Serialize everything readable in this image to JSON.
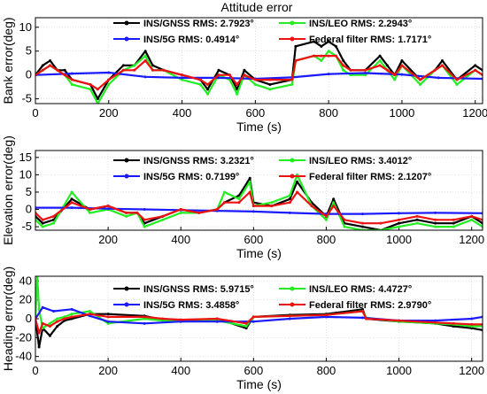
{
  "figure": {
    "title": "Attitude error"
  },
  "colors": {
    "gnss": "#000000",
    "leo": "#22ee22",
    "fiveg": "#1a1aff",
    "federal": "#ee1111"
  },
  "chart_data": [
    {
      "type": "line",
      "ylabel": "Bank error(deg)",
      "xlabel": "Time (s)",
      "xlim": [
        0,
        1220
      ],
      "ylim": [
        -6,
        12
      ],
      "xticks": [
        0,
        200,
        400,
        600,
        800,
        1000,
        1200
      ],
      "yticks": [
        -5,
        0,
        5,
        10
      ],
      "grid": true,
      "legend_location": "top",
      "series": [
        {
          "name": "INS/GNSS RMS: 2.7923°",
          "color_key": "gnss",
          "x": [
            0,
            20,
            40,
            60,
            80,
            100,
            150,
            170,
            200,
            240,
            270,
            300,
            320,
            350,
            400,
            450,
            470,
            500,
            530,
            550,
            570,
            600,
            640,
            700,
            710,
            760,
            780,
            800,
            820,
            840,
            860,
            900,
            940,
            960,
            980,
            1000,
            1050,
            1090,
            1110,
            1150,
            1200,
            1220
          ],
          "y": [
            0,
            2,
            3,
            1,
            1,
            -1,
            -2,
            -5,
            -1,
            2,
            2,
            5,
            2,
            1,
            0,
            -1,
            -3,
            1,
            0,
            -3,
            1,
            -1,
            -2,
            -1,
            6,
            7,
            6,
            7,
            6,
            3,
            1,
            1,
            4,
            2,
            0,
            3,
            -1,
            1,
            3,
            -1,
            2,
            1
          ]
        },
        {
          "name": "INS/LEO RMS: 2.2943°",
          "color_key": "leo",
          "x": [
            0,
            20,
            40,
            60,
            80,
            100,
            150,
            170,
            200,
            240,
            270,
            300,
            320,
            350,
            400,
            450,
            470,
            500,
            530,
            550,
            570,
            600,
            640,
            700,
            710,
            760,
            780,
            800,
            820,
            840,
            860,
            900,
            940,
            960,
            980,
            1000,
            1050,
            1090,
            1110,
            1150,
            1200,
            1220
          ],
          "y": [
            0,
            1,
            2,
            1,
            0,
            -2,
            -3,
            -6,
            -2,
            1,
            2,
            4,
            1,
            1,
            -1,
            -2,
            -4,
            0,
            -1,
            -4,
            0,
            -2,
            -3,
            -2,
            3,
            4,
            3,
            5,
            4,
            1,
            0,
            0,
            3,
            1,
            -1,
            2,
            -2,
            1,
            2,
            -2,
            1,
            0
          ]
        },
        {
          "name": "INS/5G RMS: 0.4914°",
          "color_key": "fiveg",
          "x": [
            0,
            100,
            200,
            300,
            400,
            500,
            600,
            700,
            800,
            900,
            1000,
            1100,
            1220
          ],
          "y": [
            0,
            0.3,
            0.5,
            -0.4,
            -0.6,
            -0.6,
            -0.8,
            -0.5,
            0.2,
            0.4,
            0.1,
            -0.6,
            -0.8
          ]
        },
        {
          "name": "Federal filter RMS: 1.7171°",
          "color_key": "federal",
          "x": [
            0,
            20,
            40,
            60,
            80,
            100,
            150,
            170,
            200,
            240,
            270,
            300,
            320,
            350,
            400,
            450,
            470,
            500,
            530,
            550,
            570,
            600,
            640,
            700,
            710,
            760,
            780,
            800,
            820,
            840,
            860,
            900,
            940,
            960,
            980,
            1000,
            1050,
            1090,
            1110,
            1150,
            1200,
            1220
          ],
          "y": [
            0,
            1,
            2,
            1,
            0,
            -1,
            -2,
            -3,
            -1,
            1,
            1,
            3,
            1,
            1,
            0,
            -1,
            -2,
            0,
            0,
            -2,
            0,
            -1,
            -1,
            -1,
            3,
            4,
            4,
            4,
            4,
            2,
            1,
            1,
            2,
            1,
            0,
            2,
            -1,
            1,
            2,
            -1,
            1,
            0
          ]
        }
      ]
    },
    {
      "type": "line",
      "ylabel": "Elevation error(deg)",
      "xlabel": "Time (s)",
      "xlim": [
        0,
        1230
      ],
      "ylim": [
        -6,
        17
      ],
      "xticks": [
        200,
        400,
        600,
        800,
        1000,
        1200
      ],
      "yticks": [
        -5,
        0,
        5,
        10,
        15
      ],
      "grid": true,
      "legend_location": "top",
      "series": [
        {
          "name": "INS/GNSS RMS: 3.2321°",
          "color_key": "gnss",
          "x": [
            0,
            20,
            50,
            100,
            150,
            200,
            250,
            280,
            300,
            350,
            400,
            450,
            500,
            520,
            560,
            590,
            600,
            650,
            700,
            720,
            760,
            800,
            820,
            850,
            900,
            950,
            1000,
            1050,
            1100,
            1150,
            1200,
            1230
          ],
          "y": [
            -2,
            -4,
            -3,
            3,
            0,
            1,
            -1,
            -1,
            -4,
            -2,
            0,
            -1,
            0,
            2,
            4,
            9,
            2,
            1,
            3,
            8,
            2,
            -2,
            3,
            -4,
            -5,
            -6,
            -4,
            -3,
            -4,
            -4,
            -2,
            -4
          ]
        },
        {
          "name": "INS/LEO RMS: 3.4012°",
          "color_key": "leo",
          "x": [
            0,
            20,
            50,
            100,
            150,
            200,
            250,
            280,
            300,
            350,
            400,
            450,
            500,
            520,
            560,
            590,
            600,
            650,
            700,
            720,
            760,
            800,
            820,
            850,
            900,
            950,
            1000,
            1050,
            1100,
            1150,
            1200,
            1230
          ],
          "y": [
            -3,
            -5,
            -4,
            5,
            -1,
            0,
            -2,
            -1,
            -5,
            -3,
            -1,
            -1,
            0,
            5,
            3,
            8,
            1,
            2,
            4,
            10,
            1,
            -3,
            2,
            -5,
            -6,
            -6,
            -5,
            -4,
            -5,
            -5,
            -3,
            -5
          ]
        },
        {
          "name": "INS/5G RMS: 0.7199°",
          "color_key": "fiveg",
          "x": [
            0,
            100,
            200,
            300,
            400,
            500,
            600,
            700,
            800,
            900,
            1000,
            1100,
            1230
          ],
          "y": [
            0.5,
            0.5,
            0.2,
            0,
            -0.2,
            -0.4,
            -0.6,
            -1,
            -1.3,
            -1.3,
            -1.1,
            -1,
            -1.1
          ]
        },
        {
          "name": "Federal filter RMS: 2.1207°",
          "color_key": "federal",
          "x": [
            0,
            20,
            50,
            100,
            150,
            200,
            250,
            280,
            300,
            350,
            400,
            450,
            500,
            520,
            560,
            590,
            600,
            650,
            700,
            720,
            760,
            800,
            820,
            850,
            900,
            950,
            1000,
            1050,
            1100,
            1150,
            1200,
            1230
          ],
          "y": [
            -1,
            -3,
            -2,
            2,
            0,
            1,
            -1,
            -1,
            -3,
            -2,
            0,
            -1,
            0,
            2,
            2,
            5,
            1,
            1,
            2,
            5,
            1,
            -2,
            1,
            -3,
            -4,
            -4,
            -3,
            -2,
            -3,
            -3,
            -2,
            -3
          ]
        }
      ]
    },
    {
      "type": "line",
      "ylabel": "Heading error(deg)",
      "xlabel": "Time (s)",
      "xlim": [
        0,
        1230
      ],
      "ylim": [
        -45,
        45
      ],
      "xticks": [
        0,
        200,
        400,
        600,
        800,
        1000,
        1200
      ],
      "yticks": [
        -40,
        -20,
        0,
        20,
        40
      ],
      "grid": true,
      "legend_location": "top",
      "series": [
        {
          "name": "INS/GNSS RMS: 5.9715°",
          "color_key": "gnss",
          "x": [
            0,
            10,
            20,
            40,
            60,
            80,
            100,
            150,
            200,
            300,
            350,
            400,
            500,
            580,
            600,
            700,
            800,
            900,
            910,
            1000,
            1100,
            1150,
            1200,
            1230
          ],
          "y": [
            0,
            -30,
            -10,
            -18,
            -8,
            -2,
            0,
            5,
            5,
            3,
            -1,
            -2,
            0,
            -10,
            2,
            4,
            5,
            10,
            0,
            -3,
            -5,
            -8,
            -10,
            -12
          ]
        },
        {
          "name": "INS/LEO RMS: 4.4727°",
          "color_key": "leo",
          "x": [
            0,
            5,
            10,
            20,
            40,
            60,
            80,
            100,
            150,
            200,
            300,
            350,
            400,
            500,
            580,
            600,
            700,
            800,
            900,
            910,
            1000,
            1100,
            1150,
            1200,
            1230
          ],
          "y": [
            0,
            45,
            10,
            -10,
            -5,
            0,
            2,
            5,
            8,
            -5,
            0,
            -2,
            -3,
            -2,
            -8,
            2,
            3,
            4,
            8,
            1,
            -3,
            -5,
            -6,
            -8,
            -8
          ]
        },
        {
          "name": "INS/5G RMS: 3.4858°",
          "color_key": "fiveg",
          "x": [
            0,
            20,
            50,
            100,
            150,
            200,
            300,
            400,
            500,
            600,
            700,
            800,
            900,
            1000,
            1100,
            1200,
            1230
          ],
          "y": [
            0,
            12,
            8,
            10,
            3,
            -3,
            -5,
            -3,
            -3,
            -3,
            0,
            2,
            1,
            -2,
            -2,
            0,
            2
          ]
        },
        {
          "name": "Federal filter RMS: 2.9790°",
          "color_key": "federal",
          "x": [
            0,
            10,
            20,
            40,
            60,
            80,
            100,
            150,
            200,
            300,
            350,
            400,
            500,
            580,
            600,
            700,
            800,
            900,
            910,
            1000,
            1100,
            1150,
            1200,
            1230
          ],
          "y": [
            0,
            -15,
            -5,
            -8,
            -3,
            0,
            2,
            5,
            2,
            2,
            0,
            -1,
            0,
            -5,
            2,
            3,
            4,
            8,
            0,
            -2,
            -4,
            -5,
            -6,
            -6
          ]
        }
      ]
    }
  ]
}
